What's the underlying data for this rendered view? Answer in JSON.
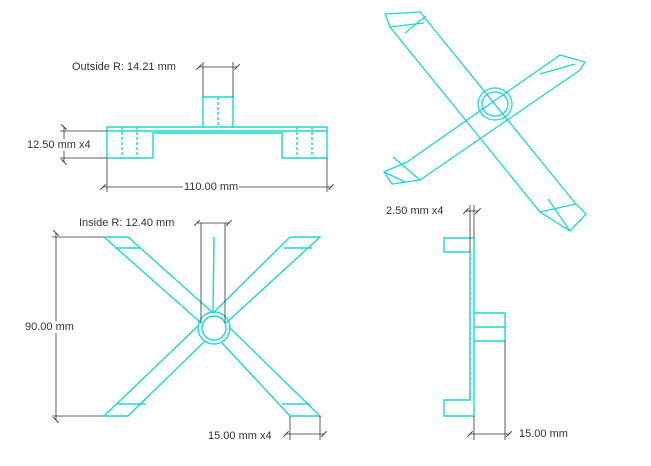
{
  "colors": {
    "part": "#1ed8cf",
    "part_dark": "#12b3ab",
    "dim": "#333333",
    "background": "#ffffff"
  },
  "views": {
    "front": {
      "outside_radius": "Outside R: 14.21 mm",
      "height": "12.50 mm x4",
      "width": "110.00 mm"
    },
    "isometric": {},
    "top": {
      "inside_radius": "Inside R: 12.40 mm",
      "height": "90.00 mm",
      "arm_width": "15.00 mm x4"
    },
    "side": {
      "thickness": "2.50 mm x4",
      "width": "15.00 mm"
    }
  }
}
